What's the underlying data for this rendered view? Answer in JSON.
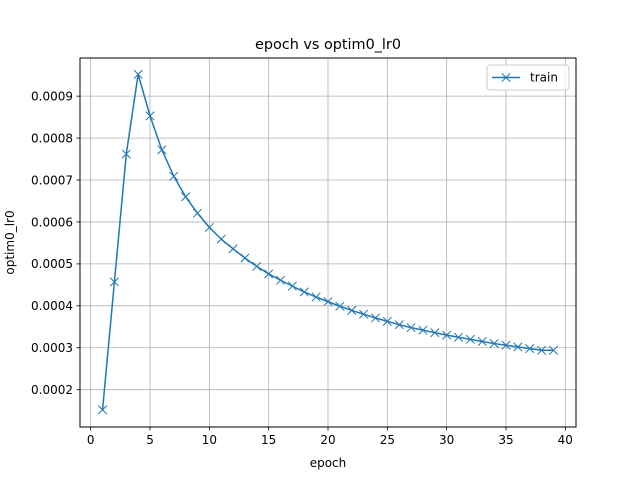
{
  "chart_data": {
    "type": "line",
    "title": "epoch vs optim0_lr0",
    "xlabel": "epoch",
    "ylabel": "optim0_lr0",
    "xlim": [
      -0.9,
      40.9
    ],
    "ylim": [
      0.000111,
      0.000991
    ],
    "xticks": [
      0,
      5,
      10,
      15,
      20,
      25,
      30,
      35,
      40
    ],
    "yticks": [
      0.0002,
      0.0003,
      0.0004,
      0.0005,
      0.0006,
      0.0007,
      0.0008,
      0.0009
    ],
    "xtick_labels": [
      "0",
      "5",
      "10",
      "15",
      "20",
      "25",
      "30",
      "35",
      "40"
    ],
    "ytick_labels": [
      "0.0002",
      "0.0003",
      "0.0004",
      "0.0005",
      "0.0006",
      "0.0007",
      "0.0008",
      "0.0009"
    ],
    "grid": true,
    "legend_position": "top-right",
    "series": [
      {
        "name": "train",
        "color": "#1f77b4",
        "marker": "x",
        "x": [
          1,
          2,
          3,
          4,
          5,
          6,
          7,
          8,
          9,
          10,
          11,
          12,
          13,
          14,
          15,
          16,
          17,
          18,
          19,
          20,
          21,
          22,
          23,
          24,
          25,
          26,
          27,
          28,
          29,
          30,
          31,
          32,
          33,
          34,
          35,
          36,
          37,
          38,
          39
        ],
        "y": [
          0.000152,
          0.000457,
          0.000762,
          0.000952,
          0.000853,
          0.000772,
          0.000709,
          0.00066,
          0.000621,
          0.000587,
          0.000559,
          0.000536,
          0.000514,
          0.000494,
          0.000476,
          0.000461,
          0.000447,
          0.000433,
          0.000421,
          0.00041,
          0.000399,
          0.000389,
          0.00038,
          0.000371,
          0.000363,
          0.000355,
          0.000348,
          0.000342,
          0.000336,
          0.00033,
          0.000325,
          0.00032,
          0.000315,
          0.00031,
          0.000306,
          0.000302,
          0.000298,
          0.000294,
          0.000294
        ]
      }
    ]
  }
}
